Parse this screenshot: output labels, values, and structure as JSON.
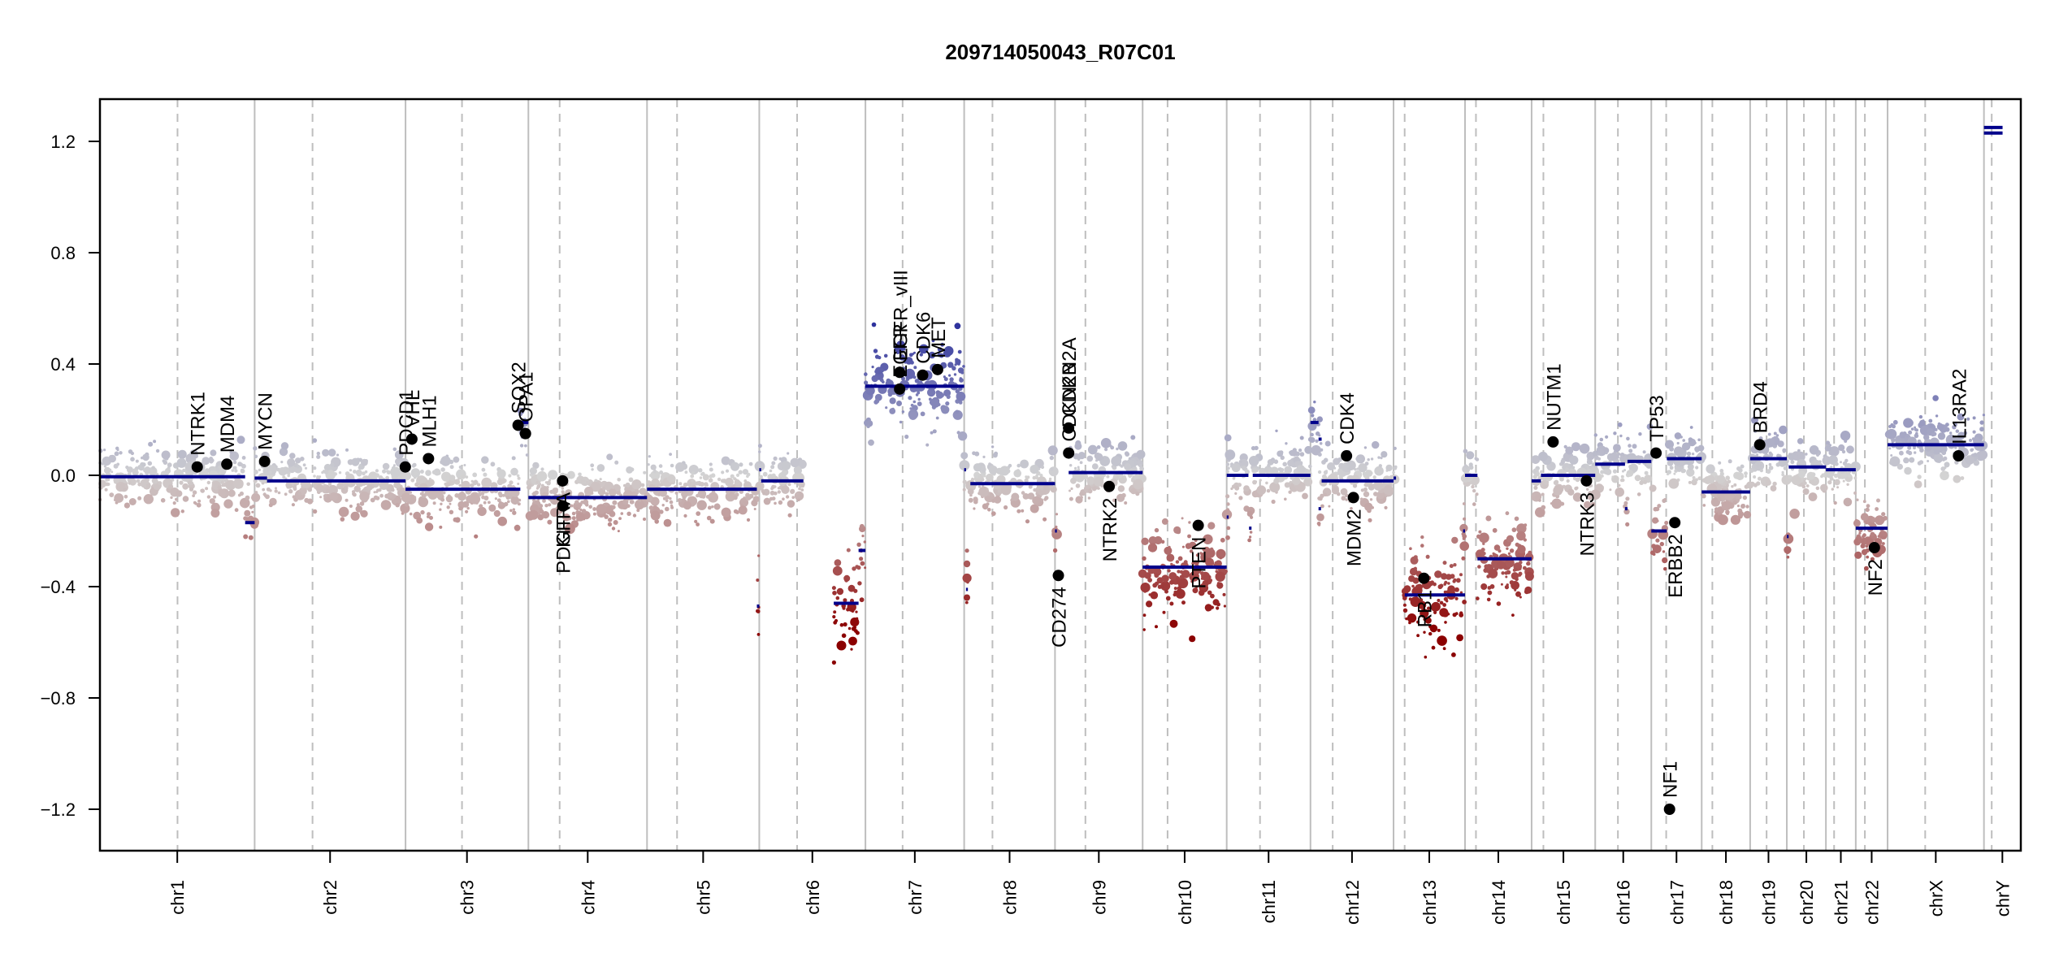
{
  "chart_data": {
    "type": "scatter",
    "title": "209714050043_R07C01",
    "xlabel": "",
    "ylabel": "",
    "ylim": [
      -1.35,
      1.35
    ],
    "yticks": [
      {
        "value": 1.2,
        "label": "1.2"
      },
      {
        "value": 0.8,
        "label": "0.8"
      },
      {
        "value": 0.4,
        "label": "0.4"
      },
      {
        "value": 0.0,
        "label": "0.0"
      },
      {
        "value": -0.4,
        "label": "−0.4"
      },
      {
        "value": -0.8,
        "label": "−0.8"
      },
      {
        "value": -1.2,
        "label": "−1.2"
      }
    ],
    "grid": false,
    "legend": "none",
    "colors": {
      "gain": "#2b2f9c",
      "neutral": "#d3d3d3",
      "loss": "#8b0000",
      "segment": "#00008b",
      "gene_marker": "#000000",
      "chrom_boundary": "#bebebe",
      "centromere": "#bebebe"
    },
    "chromosomes": [
      {
        "name": "chr1",
        "length_mb": 249.3,
        "centromere_mb": 125.0
      },
      {
        "name": "chr2",
        "length_mb": 243.2,
        "centromere_mb": 93.3
      },
      {
        "name": "chr3",
        "length_mb": 198.0,
        "centromere_mb": 91.0
      },
      {
        "name": "chr4",
        "length_mb": 191.2,
        "centromere_mb": 50.4
      },
      {
        "name": "chr5",
        "length_mb": 180.9,
        "centromere_mb": 48.4
      },
      {
        "name": "chr6",
        "length_mb": 171.1,
        "centromere_mb": 61.0
      },
      {
        "name": "chr7",
        "length_mb": 159.1,
        "centromere_mb": 59.9
      },
      {
        "name": "chr8",
        "length_mb": 146.4,
        "centromere_mb": 45.6
      },
      {
        "name": "chr9",
        "length_mb": 141.2,
        "centromere_mb": 49.0
      },
      {
        "name": "chr10",
        "length_mb": 135.5,
        "centromere_mb": 40.2
      },
      {
        "name": "chr11",
        "length_mb": 135.0,
        "centromere_mb": 53.7
      },
      {
        "name": "chr12",
        "length_mb": 133.9,
        "centromere_mb": 35.8
      },
      {
        "name": "chr13",
        "length_mb": 115.2,
        "centromere_mb": 17.9
      },
      {
        "name": "chr14",
        "length_mb": 107.3,
        "centromere_mb": 17.6
      },
      {
        "name": "chr15",
        "length_mb": 102.5,
        "centromere_mb": 19.0
      },
      {
        "name": "chr16",
        "length_mb": 90.4,
        "centromere_mb": 36.6
      },
      {
        "name": "chr17",
        "length_mb": 81.2,
        "centromere_mb": 24.0
      },
      {
        "name": "chr18",
        "length_mb": 78.1,
        "centromere_mb": 17.2
      },
      {
        "name": "chr19",
        "length_mb": 59.1,
        "centromere_mb": 26.5
      },
      {
        "name": "chr20",
        "length_mb": 63.0,
        "centromere_mb": 27.5
      },
      {
        "name": "chr21",
        "length_mb": 48.1,
        "centromere_mb": 13.2
      },
      {
        "name": "chr22",
        "length_mb": 51.3,
        "centromere_mb": 14.7
      },
      {
        "name": "chrX",
        "length_mb": 155.3,
        "centromere_mb": 60.6
      },
      {
        "name": "chrY",
        "length_mb": 59.4,
        "centromere_mb": 12.5
      }
    ],
    "segments": [
      {
        "chr": "chr1",
        "start": 0,
        "end": 234,
        "value": -0.005
      },
      {
        "chr": "chr1",
        "start": 234,
        "end": 249.3,
        "value": -0.17
      },
      {
        "chr": "chr2",
        "start": 0,
        "end": 20,
        "value": -0.01
      },
      {
        "chr": "chr2",
        "start": 20,
        "end": 243.2,
        "value": -0.02
      },
      {
        "chr": "chr3",
        "start": 0,
        "end": 185,
        "value": -0.05
      },
      {
        "chr": "chr3",
        "start": 185,
        "end": 198,
        "value": 0.19
      },
      {
        "chr": "chr4",
        "start": 0,
        "end": 191.2,
        "value": -0.08
      },
      {
        "chr": "chr5",
        "start": 0,
        "end": 177,
        "value": -0.05
      },
      {
        "chr": "chr5",
        "start": 177,
        "end": 181,
        "value": -0.47
      },
      {
        "chr": "chr6",
        "start": 0,
        "end": 3,
        "value": 0.02
      },
      {
        "chr": "chr6",
        "start": 3,
        "end": 71,
        "value": -0.02
      },
      {
        "chr": "chr6",
        "start": 120,
        "end": 160,
        "value": -0.46
      },
      {
        "chr": "chr6",
        "start": 160,
        "end": 171.1,
        "value": -0.27
      },
      {
        "chr": "chr7",
        "start": 0,
        "end": 159.1,
        "value": 0.32
      },
      {
        "chr": "chr8",
        "start": 0,
        "end": 3,
        "value": 0.02
      },
      {
        "chr": "chr8",
        "start": 3,
        "end": 6,
        "value": -0.41
      },
      {
        "chr": "chr8",
        "start": 10,
        "end": 146.4,
        "value": -0.03
      },
      {
        "chr": "chr9",
        "start": 0,
        "end": 3,
        "value": -0.2
      },
      {
        "chr": "chr9",
        "start": 22,
        "end": 141.2,
        "value": 0.01
      },
      {
        "chr": "chr10",
        "start": 0,
        "end": 135.5,
        "value": -0.33
      },
      {
        "chr": "chr11",
        "start": 0,
        "end": 3,
        "value": -0.15
      },
      {
        "chr": "chr11",
        "start": 0,
        "end": 35,
        "value": 0.0
      },
      {
        "chr": "chr11",
        "start": 36,
        "end": 40,
        "value": -0.19
      },
      {
        "chr": "chr11",
        "start": 42,
        "end": 135,
        "value": 0.0
      },
      {
        "chr": "chr12",
        "start": 0,
        "end": 13,
        "value": 0.19
      },
      {
        "chr": "chr12",
        "start": 13,
        "end": 18,
        "value": 0.13
      },
      {
        "chr": "chr12",
        "start": 13,
        "end": 17,
        "value": -0.12
      },
      {
        "chr": "chr12",
        "start": 18,
        "end": 133.9,
        "value": -0.02
      },
      {
        "chr": "chr13",
        "start": 0,
        "end": 4,
        "value": -0.01
      },
      {
        "chr": "chr13",
        "start": 18,
        "end": 115.2,
        "value": -0.43
      },
      {
        "chr": "chr13",
        "start": 112,
        "end": 115.2,
        "value": -0.2
      },
      {
        "chr": "chr14",
        "start": 0,
        "end": 20,
        "value": 0.0
      },
      {
        "chr": "chr14",
        "start": 20,
        "end": 107.3,
        "value": -0.3
      },
      {
        "chr": "chr15",
        "start": 0,
        "end": 15,
        "value": -0.02
      },
      {
        "chr": "chr15",
        "start": 15,
        "end": 102.5,
        "value": 0.0
      },
      {
        "chr": "chr16",
        "start": 0,
        "end": 48,
        "value": 0.04
      },
      {
        "chr": "chr16",
        "start": 48,
        "end": 52,
        "value": -0.12
      },
      {
        "chr": "chr16",
        "start": 52,
        "end": 90.4,
        "value": 0.05
      },
      {
        "chr": "chr17",
        "start": 0,
        "end": 25,
        "value": -0.2
      },
      {
        "chr": "chr17",
        "start": 25,
        "end": 81.2,
        "value": 0.06
      },
      {
        "chr": "chr18",
        "start": 0,
        "end": 78.1,
        "value": -0.06
      },
      {
        "chr": "chr19",
        "start": 0,
        "end": 59.1,
        "value": 0.06
      },
      {
        "chr": "chr20",
        "start": 0,
        "end": 3,
        "value": -0.22
      },
      {
        "chr": "chr20",
        "start": 3,
        "end": 63.0,
        "value": 0.03
      },
      {
        "chr": "chr21",
        "start": 0,
        "end": 48.1,
        "value": 0.02
      },
      {
        "chr": "chr22",
        "start": 0,
        "end": 51.3,
        "value": -0.19
      },
      {
        "chr": "chrX",
        "start": 0,
        "end": 155.3,
        "value": 0.11
      },
      {
        "chr": "chrY",
        "start": 0,
        "end": 30,
        "value": 1.25
      },
      {
        "chr": "chrY",
        "start": 0,
        "end": 30,
        "value": 1.23
      }
    ],
    "genes": [
      {
        "name": "NTRK1",
        "chr": "chr1",
        "pos_mb": 156.8,
        "value": 0.03,
        "label_side": "above"
      },
      {
        "name": "MDM4",
        "chr": "chr1",
        "pos_mb": 204.5,
        "value": 0.04,
        "label_side": "above"
      },
      {
        "name": "MYCN",
        "chr": "chr2",
        "pos_mb": 16.1,
        "value": 0.05,
        "label_side": "above"
      },
      {
        "name": "PDCD1",
        "chr": "chr2",
        "pos_mb": 242.8,
        "value": 0.03,
        "label_side": "above"
      },
      {
        "name": "VHL",
        "chr": "chr3",
        "pos_mb": 10.2,
        "value": 0.13,
        "label_side": "above"
      },
      {
        "name": "MLH1",
        "chr": "chr3",
        "pos_mb": 37.0,
        "value": 0.06,
        "label_side": "above"
      },
      {
        "name": "SOX2",
        "chr": "chr3",
        "pos_mb": 181.4,
        "value": 0.18,
        "label_side": "above"
      },
      {
        "name": "OPA1",
        "chr": "chr3",
        "pos_mb": 193.3,
        "value": 0.15,
        "label_side": "above"
      },
      {
        "name": "PDGFRA",
        "chr": "chr4",
        "pos_mb": 55.1,
        "value": -0.02,
        "label_side": "below"
      },
      {
        "name": "KIT",
        "chr": "chr4",
        "pos_mb": 55.5,
        "value": -0.11,
        "label_side": "below"
      },
      {
        "name": "EGFR",
        "chr": "chr7",
        "pos_mb": 55.1,
        "value": 0.31,
        "label_side": "above"
      },
      {
        "name": "EGFR_vIII",
        "chr": "chr7",
        "pos_mb": 55.2,
        "value": 0.37,
        "label_side": "above"
      },
      {
        "name": "CDK6",
        "chr": "chr7",
        "pos_mb": 92.2,
        "value": 0.36,
        "label_side": "above"
      },
      {
        "name": "MET",
        "chr": "chr7",
        "pos_mb": 116.3,
        "value": 0.38,
        "label_side": "above"
      },
      {
        "name": "CD274",
        "chr": "chr9",
        "pos_mb": 5.4,
        "value": -0.36,
        "label_side": "below"
      },
      {
        "name": "CDKN2A",
        "chr": "chr9",
        "pos_mb": 21.9,
        "value": 0.17,
        "label_side": "above"
      },
      {
        "name": "CDKN2B",
        "chr": "chr9",
        "pos_mb": 22.0,
        "value": 0.08,
        "label_side": "above"
      },
      {
        "name": "NTRK2",
        "chr": "chr9",
        "pos_mb": 87.3,
        "value": -0.04,
        "label_side": "below"
      },
      {
        "name": "PTEN",
        "chr": "chr10",
        "pos_mb": 89.6,
        "value": -0.18,
        "label_side": "below"
      },
      {
        "name": "CDK4",
        "chr": "chr12",
        "pos_mb": 58.1,
        "value": 0.07,
        "label_side": "above"
      },
      {
        "name": "MDM2",
        "chr": "chr12",
        "pos_mb": 69.2,
        "value": -0.08,
        "label_side": "below"
      },
      {
        "name": "RB1",
        "chr": "chr13",
        "pos_mb": 48.9,
        "value": -0.37,
        "label_side": "below"
      },
      {
        "name": "NUTM1",
        "chr": "chr15",
        "pos_mb": 34.6,
        "value": 0.12,
        "label_side": "above"
      },
      {
        "name": "NTRK3",
        "chr": "chr15",
        "pos_mb": 88.4,
        "value": -0.02,
        "label_side": "below"
      },
      {
        "name": "TP53",
        "chr": "chr17",
        "pos_mb": 7.6,
        "value": 0.08,
        "label_side": "above"
      },
      {
        "name": "NF1",
        "chr": "chr17",
        "pos_mb": 29.4,
        "value": -1.2,
        "label_side": "above"
      },
      {
        "name": "ERBB2",
        "chr": "chr17",
        "pos_mb": 37.9,
        "value": -0.17,
        "label_side": "below"
      },
      {
        "name": "BRD4",
        "chr": "chr19",
        "pos_mb": 15.4,
        "value": 0.11,
        "label_side": "above"
      },
      {
        "name": "NF2",
        "chr": "chr22",
        "pos_mb": 30.0,
        "value": -0.26,
        "label_side": "below"
      },
      {
        "name": "IL13RA2",
        "chr": "chrX",
        "pos_mb": 114.3,
        "value": 0.07,
        "label_side": "above"
      }
    ]
  }
}
